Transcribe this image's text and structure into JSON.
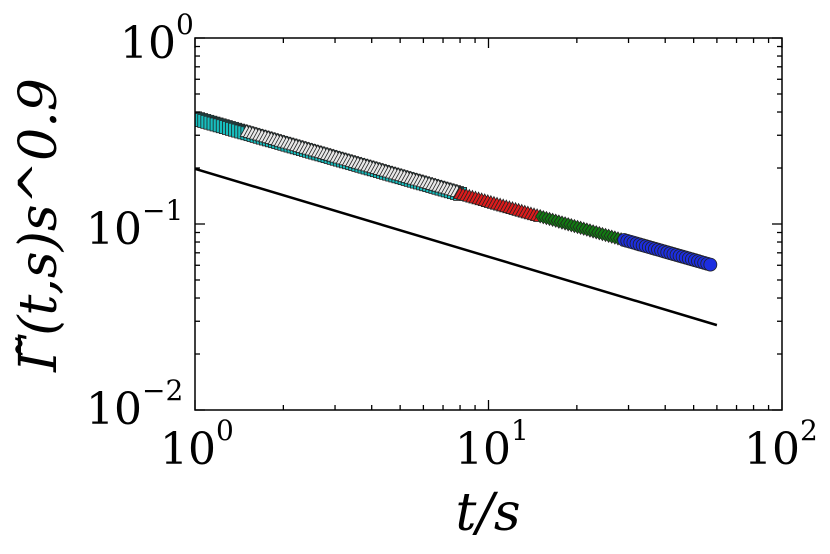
{
  "chart_data": {
    "type": "scatter",
    "x_scale": "log",
    "y_scale": "log",
    "xlim": [
      1,
      100
    ],
    "ylim": [
      0.01,
      1
    ],
    "xlabel": "t/s",
    "ylabel": "Γ̃(t,s)s^0.9",
    "x_ticks": [
      {
        "base": "10",
        "exp": "0"
      },
      {
        "base": "10",
        "exp": "1"
      },
      {
        "base": "10",
        "exp": "2"
      }
    ],
    "y_ticks": [
      {
        "base": "10",
        "exp": "0"
      },
      {
        "base": "10",
        "exp": "−1"
      },
      {
        "base": "10",
        "exp": "−2"
      }
    ],
    "grid": false,
    "series": [
      {
        "marker": "square",
        "color": "#17bfbf",
        "x_range": [
          1,
          8
        ],
        "y_at_start": 0.37,
        "slope": -0.45
      },
      {
        "marker": "triangle",
        "color": "#e8e8e8",
        "x_range": [
          1.5,
          8
        ],
        "y_at_start": 0.315,
        "slope": -0.45
      },
      {
        "marker": "triangle",
        "color": "#dd1c1c",
        "x_range": [
          8,
          15
        ],
        "y_at_start": 0.146,
        "slope": -0.45
      },
      {
        "marker": "diamond",
        "color": "#127a12",
        "x_range": [
          15,
          29
        ],
        "y_at_start": 0.11,
        "slope": -0.45
      },
      {
        "marker": "circle",
        "color": "#1c2ee0",
        "x_range": [
          29,
          57
        ],
        "y_at_start": 0.082,
        "slope": -0.45
      }
    ],
    "reference_line": {
      "x": [
        1,
        60
      ],
      "y": [
        0.198,
        0.0286
      ],
      "color": "#000000"
    }
  }
}
